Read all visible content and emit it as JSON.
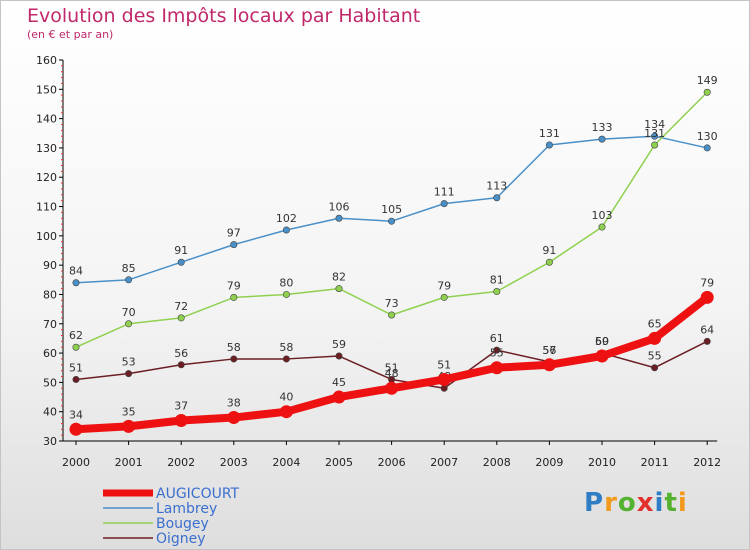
{
  "title": "Evolution des Impôts locaux par Habitant",
  "subtitle": "(en € et par an)",
  "logo": {
    "text": "Proxiti"
  },
  "chart_data": {
    "type": "line",
    "title": "Evolution des Impôts locaux par Habitant",
    "subtitle": "(en € et par an)",
    "xlabel": "",
    "ylabel": "",
    "ylim": [
      30,
      160
    ],
    "yticks": [
      30,
      40,
      50,
      60,
      70,
      80,
      90,
      100,
      110,
      120,
      130,
      140,
      150,
      160
    ],
    "grid": false,
    "legend_position": "bottom-left",
    "x": [
      "2000",
      "2001",
      "2002",
      "2003",
      "2004",
      "2005",
      "2006",
      "2007",
      "2008",
      "2009",
      "2010",
      "2011",
      "2012"
    ],
    "series": [
      {
        "name": "Lambrey",
        "color": "#4a90c8",
        "values": [
          84,
          85,
          91,
          97,
          102,
          106,
          105,
          111,
          113,
          131,
          133,
          134,
          130
        ]
      },
      {
        "name": "Bougey",
        "color": "#8fd14f",
        "values": [
          62,
          70,
          72,
          79,
          80,
          82,
          73,
          79,
          81,
          91,
          103,
          131,
          149
        ]
      },
      {
        "name": "Oigney",
        "color": "#6b1f24",
        "values": [
          51,
          53,
          56,
          58,
          58,
          59,
          51,
          48,
          61,
          57,
          60,
          55,
          64
        ]
      },
      {
        "name": "AUGICOURT",
        "color": "#ee1111",
        "values": [
          34,
          35,
          37,
          38,
          40,
          45,
          48,
          51,
          55,
          56,
          59,
          65,
          79
        ]
      }
    ]
  }
}
